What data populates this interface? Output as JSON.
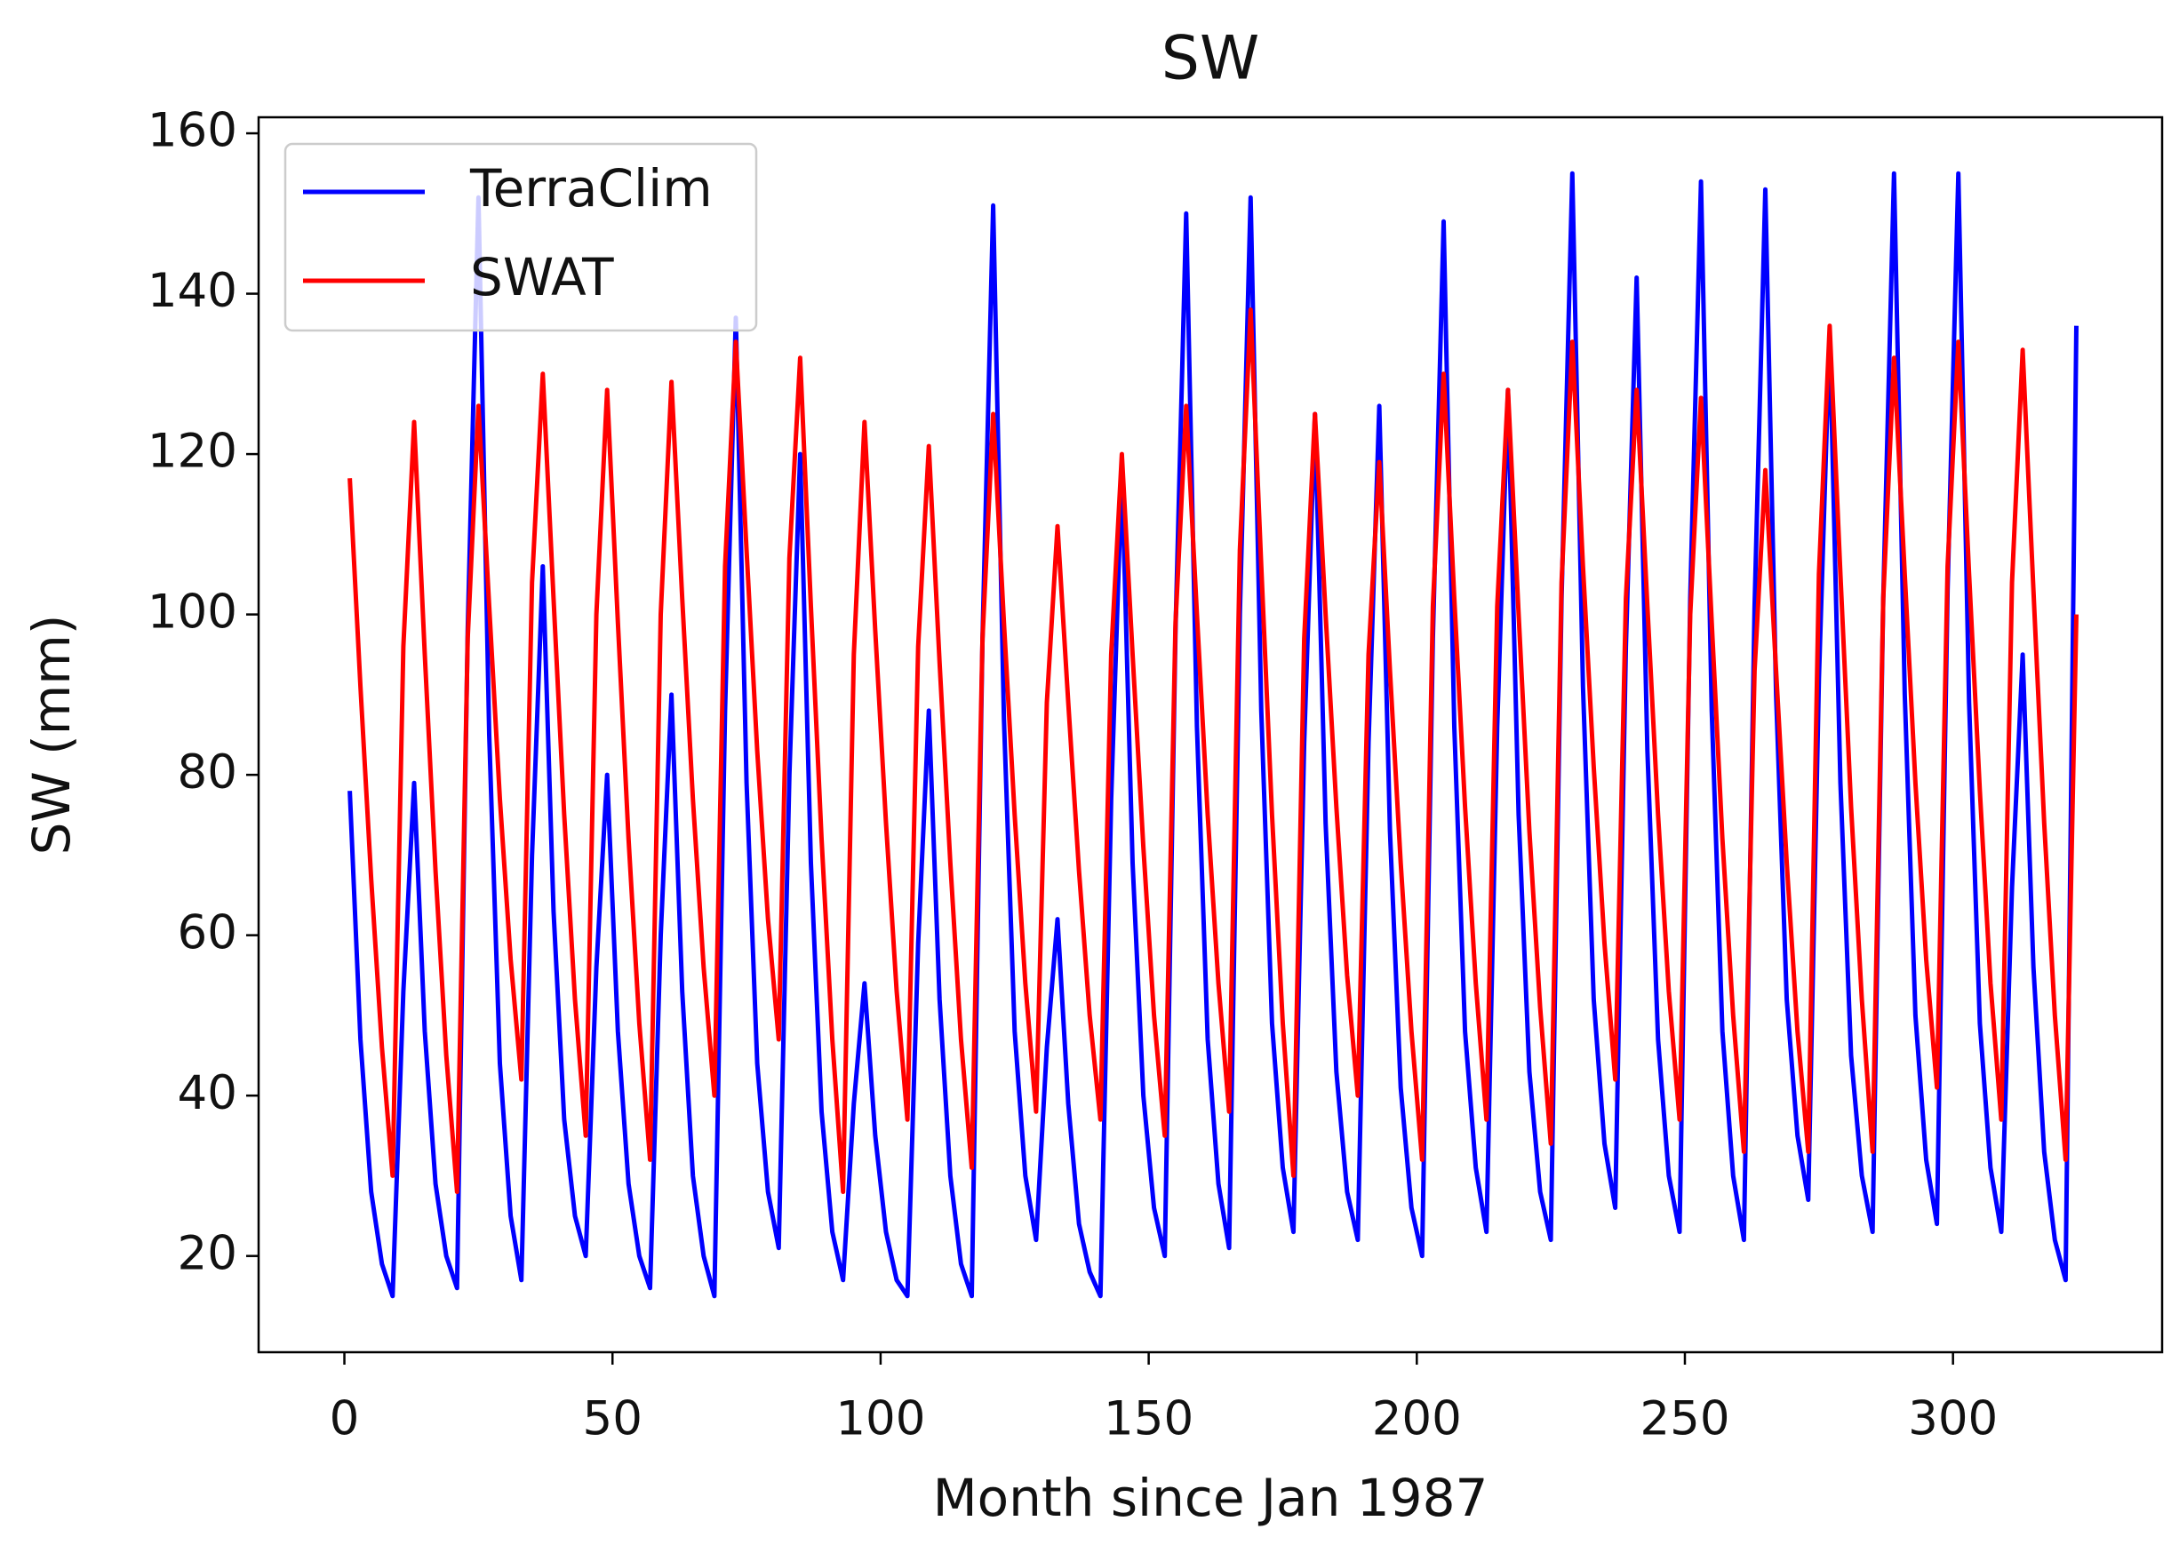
{
  "chart_data": {
    "type": "line",
    "title": "SW",
    "x_label": "Month since Jan 1987",
    "y_label": "SW (mm)",
    "x": [
      1,
      3,
      5,
      7,
      9,
      11,
      13,
      15,
      17,
      19,
      21,
      23,
      25,
      27,
      29,
      31,
      33,
      35,
      37,
      39,
      41,
      43,
      45,
      47,
      49,
      51,
      53,
      55,
      57,
      59,
      61,
      63,
      65,
      67,
      69,
      71,
      73,
      75,
      77,
      79,
      81,
      83,
      85,
      87,
      89,
      91,
      93,
      95,
      97,
      99,
      101,
      103,
      105,
      107,
      109,
      111,
      113,
      115,
      117,
      119,
      121,
      123,
      125,
      127,
      129,
      131,
      133,
      135,
      137,
      139,
      141,
      143,
      145,
      147,
      149,
      151,
      153,
      155,
      157,
      159,
      161,
      163,
      165,
      167,
      169,
      171,
      173,
      175,
      177,
      179,
      181,
      183,
      185,
      187,
      189,
      191,
      193,
      195,
      197,
      199,
      201,
      203,
      205,
      207,
      209,
      211,
      213,
      215,
      217,
      219,
      221,
      223,
      225,
      227,
      229,
      231,
      233,
      235,
      237,
      239,
      241,
      243,
      245,
      247,
      249,
      251,
      253,
      255,
      257,
      259,
      261,
      263,
      265,
      267,
      269,
      271,
      273,
      275,
      277,
      279,
      281,
      283,
      285,
      287,
      289,
      291,
      293,
      295,
      297,
      299,
      301,
      303,
      305,
      307,
      309,
      311,
      313,
      315,
      317,
      319,
      321,
      323
    ],
    "series": [
      {
        "name": "TerraClim",
        "color": "#0000ff",
        "values": [
          78,
          47,
          28,
          19,
          15,
          53,
          79,
          48,
          29,
          20,
          16,
          98,
          152,
          85,
          44,
          25,
          17,
          70,
          106,
          63,
          37,
          25,
          20,
          56,
          80,
          48,
          29,
          20,
          16,
          60,
          90,
          53,
          30,
          20,
          15,
          88,
          137,
          79,
          44,
          28,
          21,
          80,
          120,
          69,
          38,
          23,
          17,
          39,
          54,
          35,
          23,
          17,
          15,
          59,
          88,
          52,
          30,
          19,
          15,
          97,
          151,
          87,
          48,
          30,
          22,
          46,
          62,
          39,
          24,
          18,
          15,
          77,
          118,
          69,
          40,
          26,
          20,
          98,
          150,
          86,
          47,
          29,
          21,
          100,
          152,
          88,
          49,
          31,
          23,
          84,
          125,
          74,
          43,
          28,
          22,
          84,
          126,
          73,
          41,
          26,
          20,
          97,
          149,
          86,
          48,
          31,
          23,
          86,
          128,
          75,
          43,
          28,
          22,
          102,
          155,
          91,
          52,
          34,
          26,
          96,
          142,
          83,
          47,
          30,
          23,
          102,
          154,
          88,
          48,
          30,
          22,
          101,
          153,
          90,
          52,
          35,
          27,
          92,
          135,
          79,
          45,
          30,
          23,
          102,
          155,
          90,
          50,
          32,
          24,
          103,
          155,
          89,
          49,
          31,
          23,
          66,
          95,
          56,
          33,
          22,
          17,
          136
        ]
      },
      {
        "name": "SWAT",
        "color": "#ff0000",
        "values": [
          117,
          91,
          67,
          46,
          30,
          96,
          124,
          95,
          68,
          45,
          28,
          97,
          126,
          101,
          77,
          57,
          42,
          104,
          130,
          102,
          75,
          52,
          35,
          100,
          128,
          99,
          72,
          49,
          32,
          100,
          129,
          102,
          77,
          56,
          40,
          106,
          134,
          108,
          83,
          62,
          47,
          107,
          132,
          101,
          72,
          47,
          28,
          95,
          124,
          98,
          74,
          53,
          37,
          96,
          121,
          94,
          69,
          47,
          31,
          97,
          125,
          99,
          75,
          54,
          38,
          89,
          111,
          89,
          68,
          50,
          37,
          95,
          120,
          95,
          71,
          50,
          35,
          99,
          126,
          100,
          75,
          54,
          38,
          108,
          138,
          106,
          75,
          49,
          30,
          97,
          125,
          100,
          76,
          55,
          40,
          95,
          119,
          93,
          69,
          48,
          32,
          101,
          130,
          102,
          76,
          54,
          37,
          101,
          128,
          100,
          73,
          51,
          34,
          104,
          134,
          106,
          81,
          59,
          42,
          102,
          128,
          101,
          75,
          53,
          37,
          100,
          127,
          99,
          72,
          50,
          33,
          93,
          118,
          93,
          69,
          48,
          33,
          105,
          136,
          105,
          76,
          52,
          33,
          102,
          132,
          105,
          79,
          57,
          41,
          106,
          134,
          105,
          78,
          54,
          37,
          104,
          133,
          103,
          74,
          50,
          32,
          100
        ]
      }
    ],
    "xlim": [
      -16,
      339
    ],
    "ylim": [
      8,
      162
    ],
    "xticks": [
      0,
      50,
      100,
      150,
      200,
      250,
      300
    ],
    "yticks": [
      20,
      40,
      60,
      80,
      100,
      120,
      140,
      160
    ],
    "legend": "upper left"
  }
}
